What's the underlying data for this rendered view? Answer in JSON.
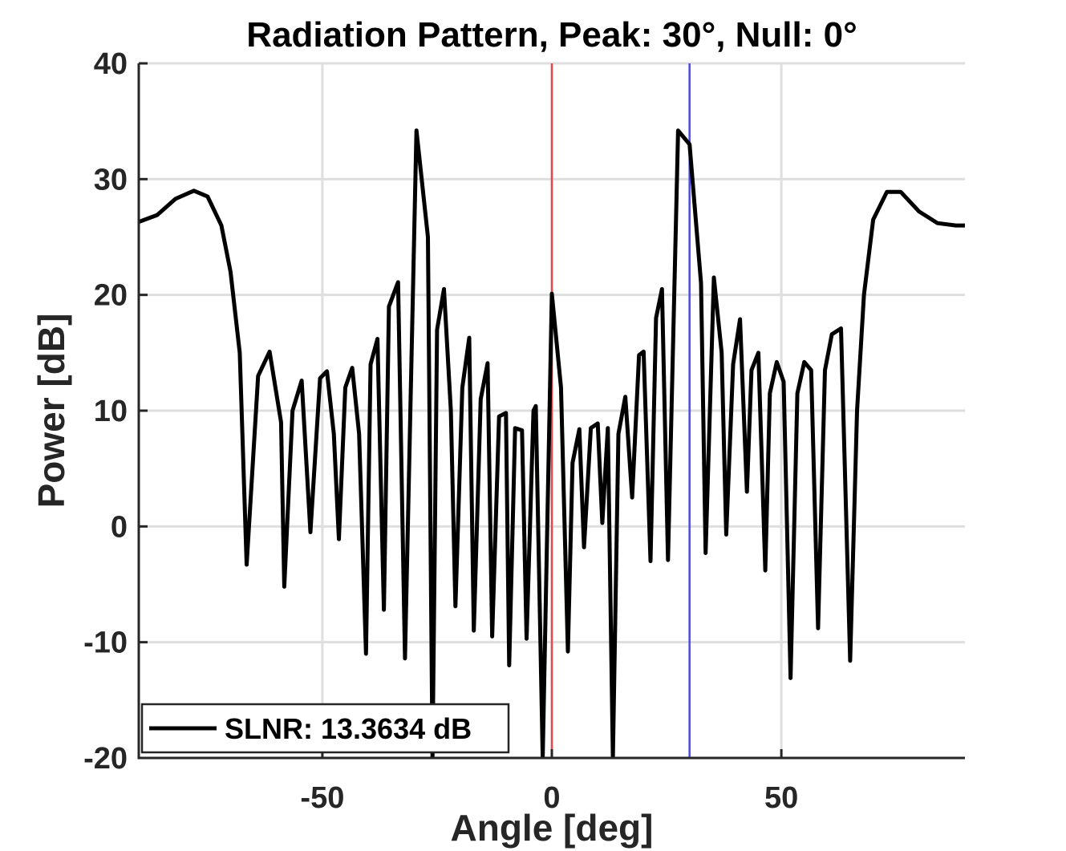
{
  "chart_data": {
    "type": "line",
    "title": "Radiation Pattern, Peak: 30°, Null: 0°",
    "xlabel": "Angle [deg]",
    "ylabel": "Power [dB]",
    "xlim": [
      -90,
      90
    ],
    "ylim": [
      -20,
      40
    ],
    "xticks": [
      -50,
      0,
      50
    ],
    "xtick_labels": [
      "-50",
      "0",
      "50"
    ],
    "yticks": [
      -20,
      -10,
      0,
      10,
      20,
      30,
      40
    ],
    "ytick_labels": [
      "-20",
      "-10",
      "0",
      "10",
      "20",
      "30",
      "40"
    ],
    "grid": true,
    "legend_position": "bottom-left",
    "series": [
      {
        "name": "SLNR: 13.3634 dB",
        "color": "#000000",
        "x": [
          -90,
          -86,
          -82,
          -78,
          -75,
          -72,
          -70,
          -68,
          -66.5,
          -64,
          -61.5,
          -59,
          -58.3,
          -56.5,
          -54.5,
          -52.6,
          -50.5,
          -49,
          -47.5,
          -46.4,
          -45,
          -43.5,
          -42,
          -40.5,
          -39.5,
          -38,
          -36.6,
          -35.5,
          -33.5,
          -32,
          -29.5,
          -27,
          -26,
          -25,
          -23.5,
          -22,
          -21,
          -19.5,
          -18,
          -17,
          -15.5,
          -14,
          -13,
          -11.5,
          -10,
          -9.3,
          -8,
          -6.5,
          -5.5,
          -4,
          -3.5,
          -2,
          0,
          2,
          3.5,
          4.5,
          6,
          7,
          8.5,
          10,
          11,
          12.2,
          13.3,
          14.5,
          16,
          17.5,
          19,
          20,
          21.5,
          22.7,
          24,
          25.3,
          27.5,
          30,
          32.5,
          33.5,
          35.3,
          37,
          38,
          39.5,
          41,
          42.5,
          43.5,
          45,
          46.5,
          47.5,
          49,
          50.5,
          52,
          53.5,
          55,
          56.5,
          58,
          59.5,
          61,
          63,
          65,
          66.5,
          68,
          70,
          73,
          76,
          80,
          84,
          88,
          90
        ],
        "y": [
          26.3,
          26.9,
          28.3,
          29.0,
          28.5,
          26.0,
          22.0,
          15.0,
          -3.3,
          13.0,
          15.1,
          9.0,
          -5.2,
          10.0,
          12.6,
          -0.5,
          12.8,
          13.4,
          8.0,
          -1.1,
          12.0,
          13.7,
          8.0,
          -11.0,
          14.0,
          16.2,
          -7.2,
          19.0,
          21.1,
          -11.4,
          34.2,
          25.0,
          -20.0,
          17.0,
          20.5,
          10.0,
          -6.9,
          12.0,
          16.3,
          -9.0,
          11.0,
          14.1,
          -9.5,
          9.5,
          9.8,
          -12.0,
          8.5,
          8.3,
          -9.7,
          10.0,
          10.4,
          -20.0,
          20.1,
          12.0,
          -10.8,
          5.5,
          8.4,
          -1.8,
          8.5,
          8.9,
          0.3,
          8.5,
          -20.0,
          8.0,
          11.2,
          2.5,
          14.8,
          15.1,
          -3.0,
          18.0,
          20.5,
          -2.9,
          34.2,
          33.0,
          21.0,
          -2.3,
          21.5,
          15.0,
          -0.7,
          14.0,
          17.9,
          3.0,
          13.5,
          15.0,
          -3.8,
          11.5,
          14.2,
          12.5,
          -13.1,
          11.5,
          14.2,
          13.5,
          -8.8,
          13.5,
          16.6,
          17.1,
          -11.6,
          10.0,
          20.0,
          26.5,
          28.9,
          28.9,
          27.2,
          26.2,
          26.0,
          26.0
        ]
      }
    ],
    "reference_lines": [
      {
        "name": "null-line",
        "x": 0,
        "color": "#e8474c"
      },
      {
        "name": "peak-line",
        "x": 30,
        "color": "#4a4ae0"
      }
    ]
  }
}
